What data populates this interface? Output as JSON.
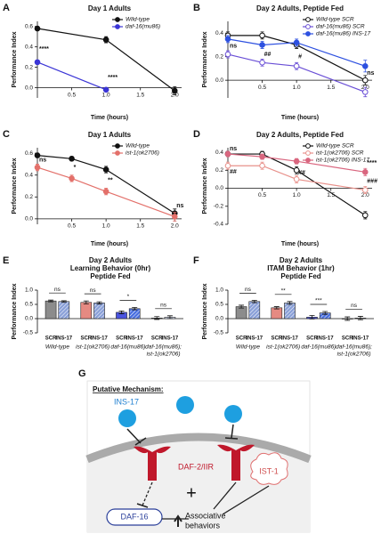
{
  "chart_data": [
    {
      "type": "line",
      "panel": "A",
      "title": "Day 1 Adults",
      "x_label": "Time (hours)",
      "y_label": "Performance Index",
      "x": [
        0,
        1,
        2
      ],
      "xlim": [
        0,
        2.1
      ],
      "xticks": [
        0.5,
        {
          "value": 1,
          "label": "1.0"
        },
        1.5,
        {
          "value": 2,
          "label": "2.0"
        }
      ],
      "ylim": [
        -0.1,
        0.65
      ],
      "yticks": [
        {
          "value": 0,
          "label": "0.0"
        },
        0.2,
        0.4,
        0.6
      ],
      "series": [
        {
          "name": "Wild-type",
          "color": "#111111",
          "marker": "filled",
          "values": [
            0.58,
            0.47,
            -0.03
          ],
          "errors": [
            0.02,
            0.03,
            0.04
          ]
        },
        {
          "name": "daf-16(mu86)",
          "color": "#3b35d6",
          "marker": "filled",
          "values": [
            0.25,
            -0.02,
            null
          ],
          "errors": [
            0.02,
            0.02,
            null
          ]
        }
      ],
      "annotations": [
        {
          "text": "****",
          "x": 0,
          "y": 0.38
        },
        {
          "text": "****",
          "x": 1,
          "y": 0.1
        }
      ]
    },
    {
      "type": "line",
      "panel": "B",
      "title": "Day 2 Adults, Peptide Fed",
      "x_label": "Time (hours)",
      "y_label": "Performance Index",
      "x": [
        0,
        0.5,
        1,
        2
      ],
      "xlim": [
        0,
        2.1
      ],
      "xticks": [
        0.5,
        {
          "value": 1,
          "label": "1.0"
        },
        1.5,
        {
          "value": 2,
          "label": "2.0"
        }
      ],
      "ylim": [
        -0.15,
        0.5
      ],
      "yticks": [
        {
          "value": 0,
          "label": "0.0"
        },
        0.2,
        0.4
      ],
      "series": [
        {
          "name": "Wild-type SCR",
          "color": "#111111",
          "marker": "open",
          "values": [
            0.38,
            0.38,
            0.3,
            0.0
          ],
          "errors": [
            0.03,
            0.03,
            0.03,
            0.04
          ]
        },
        {
          "name": "daf-16(mu86) SCR",
          "color": "#6a4fd6",
          "marker": "open",
          "values": [
            0.22,
            0.15,
            0.12,
            -0.1
          ],
          "errors": [
            0.03,
            0.03,
            0.03,
            0.04
          ]
        },
        {
          "name": "daf-16(mu86) INS-17",
          "color": "#2d50e0",
          "marker": "filled",
          "values": [
            0.35,
            0.3,
            0.32,
            0.12
          ],
          "errors": [
            0.03,
            0.03,
            0.03,
            0.05
          ]
        }
      ],
      "annotations": [
        {
          "text": "ns",
          "x": 0,
          "y": 0.29
        },
        {
          "text": "##",
          "x": 0.5,
          "y": 0.22
        },
        {
          "text": "#",
          "x": 1,
          "y": 0.2
        },
        {
          "text": "ns",
          "x": 2,
          "y": 0.06
        }
      ]
    },
    {
      "type": "line",
      "panel": "C",
      "title": "Day 1 Adults",
      "x_label": "Time (hours)",
      "y_label": "Performance Index",
      "x": [
        0,
        0.5,
        1,
        2
      ],
      "xlim": [
        0,
        2.1
      ],
      "xticks": [
        0.5,
        {
          "value": 1,
          "label": "1.0"
        },
        1.5,
        {
          "value": 2,
          "label": "2.0"
        }
      ],
      "ylim": [
        -0.05,
        0.65
      ],
      "yticks": [
        {
          "value": 0,
          "label": "0.0"
        },
        0.2,
        0.4,
        0.6
      ],
      "series": [
        {
          "name": "Wild-type",
          "color": "#111111",
          "marker": "filled",
          "values": [
            0.58,
            0.55,
            0.45,
            0.05
          ],
          "errors": [
            0.02,
            0.02,
            0.03,
            0.04
          ]
        },
        {
          "name": "ist-1(ok2706)",
          "color": "#e3706a",
          "marker": "filled",
          "values": [
            0.47,
            0.37,
            0.25,
            0.02
          ],
          "errors": [
            0.03,
            0.03,
            0.03,
            0.04
          ]
        }
      ],
      "annotations": [
        {
          "text": "ns",
          "x": 0,
          "y": 0.54
        },
        {
          "text": "*",
          "x": 0.5,
          "y": 0.47
        },
        {
          "text": "**",
          "x": 1,
          "y": 0.35
        },
        {
          "text": "ns",
          "x": 2,
          "y": 0.12
        }
      ]
    },
    {
      "type": "line",
      "panel": "D",
      "title": "Day 2 Adults, Peptide Fed",
      "x_label": "Time (hours)",
      "y_label": "Performance Index",
      "x": [
        0,
        0.5,
        1,
        2
      ],
      "xlim": [
        0,
        2.1
      ],
      "xticks": [
        0.5,
        {
          "value": 1,
          "label": "1.0"
        },
        1.5,
        {
          "value": 2,
          "label": "2.0"
        }
      ],
      "ylim": [
        -0.4,
        0.45
      ],
      "yticks": [
        -0.4,
        -0.2,
        {
          "value": 0,
          "label": "0.0"
        },
        0.2,
        0.4
      ],
      "series": [
        {
          "name": "Wild-type SCR",
          "color": "#111111",
          "marker": "open",
          "values": [
            0.38,
            0.38,
            0.2,
            -0.3
          ],
          "errors": [
            0.03,
            0.03,
            0.04,
            0.04
          ]
        },
        {
          "name": "ist-1(ok2706) SCR",
          "color": "#e8918b",
          "marker": "open",
          "values": [
            0.25,
            0.25,
            0.1,
            -0.02
          ],
          "errors": [
            0.04,
            0.04,
            0.04,
            0.04
          ]
        },
        {
          "name": "ist-1(ok2706) INS-17",
          "color": "#d9667f",
          "marker": "filled",
          "values": [
            0.38,
            0.35,
            0.3,
            0.18
          ],
          "errors": [
            0.03,
            0.03,
            0.03,
            0.04
          ]
        }
      ],
      "annotations": [
        {
          "text": "ns",
          "x": 0,
          "y": 0.44
        },
        {
          "text": "##",
          "x": 0,
          "y": 0.18
        },
        {
          "text": "##",
          "x": 1,
          "y": 0.17
        },
        {
          "text": "****",
          "x": 2,
          "y": 0.28
        },
        {
          "text": "###",
          "x": 2,
          "y": 0.08
        }
      ]
    },
    {
      "type": "bar",
      "panel": "E",
      "title": [
        "Day 2 Adults",
        "Learning Behavior (0hr)",
        "Peptide Fed"
      ],
      "y_label": "Performance Index",
      "categories": [
        "SCR",
        "INS-17",
        "SCR",
        "INS-17",
        "SCR",
        "INS-17",
        "SCR",
        "INS-17"
      ],
      "groups": [
        [
          "Wild-type"
        ],
        [
          "ist-1(ok2706)"
        ],
        [
          "daf-16(mu86)"
        ],
        [
          "daf-16(mu86);",
          "ist-1(ok2706)"
        ]
      ],
      "values": [
        0.62,
        0.6,
        0.57,
        0.55,
        0.22,
        0.35,
        0.02,
        0.05
      ],
      "errors": [
        0.03,
        0.03,
        0.05,
        0.04,
        0.05,
        0.04,
        0.05,
        0.05
      ],
      "colors": [
        "#8c8c8c",
        "#8aa0d8",
        "#e58a82",
        "#8aa0d8",
        "#4a54e0",
        "#4a70e0",
        "#f0f0f0",
        "#d8e0f8"
      ],
      "hatched": [
        false,
        true,
        false,
        true,
        false,
        true,
        false,
        true
      ],
      "significance": [
        "ns",
        "ns",
        "*",
        "ns"
      ],
      "ylim": [
        -0.5,
        1.0
      ],
      "yticks": [
        -0.5,
        {
          "value": 0,
          "label": "0.0"
        },
        0.5,
        {
          "value": 1,
          "label": "1.0"
        }
      ]
    },
    {
      "type": "bar",
      "panel": "F",
      "title": [
        "Day 2 Adults",
        "ITAM Behavior (1hr)",
        "Peptide Fed"
      ],
      "y_label": "Performance Index",
      "categories": [
        "SCR",
        "INS-17",
        "SCR",
        "INS-17",
        "SCR",
        "INS-17",
        "SCR",
        "INS-17"
      ],
      "groups": [
        [
          "Wild-type"
        ],
        [
          "ist-1(ok2706)"
        ],
        [
          "daf-16(mu86)"
        ],
        [
          "daf-16(mu86);",
          "ist-1(ok2706)"
        ]
      ],
      "values": [
        0.42,
        0.6,
        0.38,
        0.55,
        0.05,
        0.2,
        0.0,
        0.02
      ],
      "errors": [
        0.05,
        0.04,
        0.04,
        0.05,
        0.06,
        0.05,
        0.06,
        0.06
      ],
      "colors": [
        "#8c8c8c",
        "#8aa0d8",
        "#e58a82",
        "#8aa0d8",
        "#4a54e0",
        "#4a70e0",
        "#f0f0f0",
        "#d8e0f8"
      ],
      "hatched": [
        false,
        true,
        false,
        true,
        false,
        true,
        false,
        true
      ],
      "significance": [
        "ns",
        "**",
        "***",
        "ns"
      ],
      "ylim": [
        -0.5,
        1.0
      ],
      "yticks": [
        -0.5,
        {
          "value": 0,
          "label": "0.0"
        },
        0.5,
        {
          "value": 1,
          "label": "1.0"
        }
      ]
    }
  ],
  "diagram": {
    "panel": "G",
    "title": "Putative Mechanism:",
    "ligand": "INS-17",
    "receptor": "DAF-2/IIR",
    "cofactor": "IST-1",
    "plus": "+",
    "tf": "DAF-16",
    "output": [
      "Associative",
      "behaviors"
    ]
  }
}
